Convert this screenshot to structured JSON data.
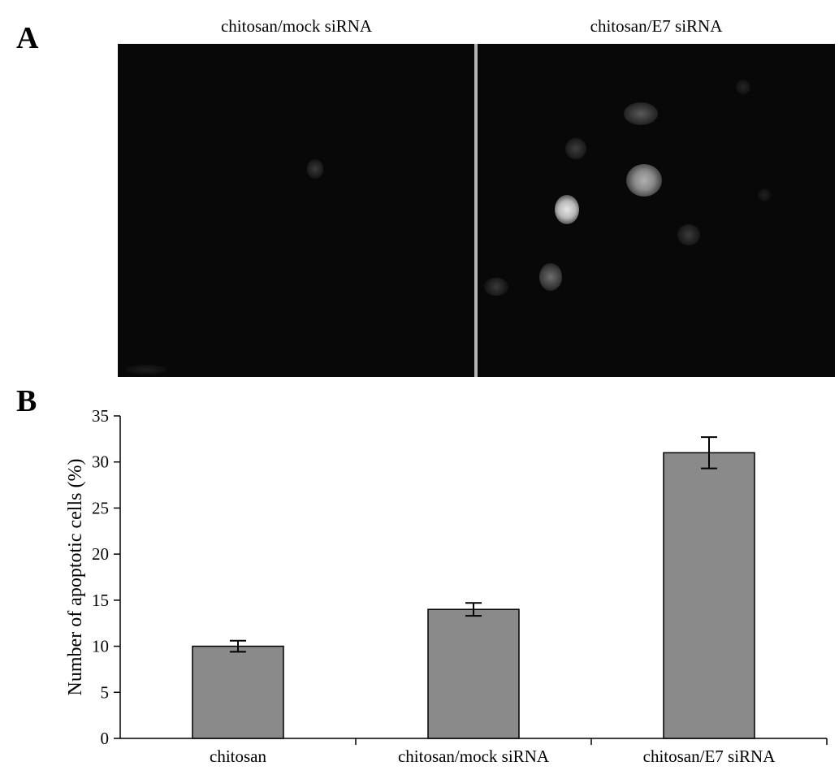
{
  "panel_a": {
    "letter": "A",
    "images": [
      {
        "title": "chitosan/mock siRNA"
      },
      {
        "title": "chitosan/E7 siRNA"
      }
    ]
  },
  "panel_b": {
    "letter": "B"
  },
  "chart_data": {
    "type": "bar",
    "title": "",
    "xlabel": "",
    "ylabel": "Number of apoptotic cells (%)",
    "categories": [
      "chitosan",
      "chitosan/mock siRNA",
      "chitosan/E7 siRNA"
    ],
    "values": [
      10,
      14,
      31
    ],
    "errors": [
      0.6,
      0.7,
      1.7
    ],
    "ylim": [
      0,
      35
    ],
    "yticks": [
      0,
      5,
      10,
      15,
      20,
      25,
      30,
      35
    ],
    "grid": false,
    "legend": "none",
    "bar_color": "#8a8a8a"
  }
}
